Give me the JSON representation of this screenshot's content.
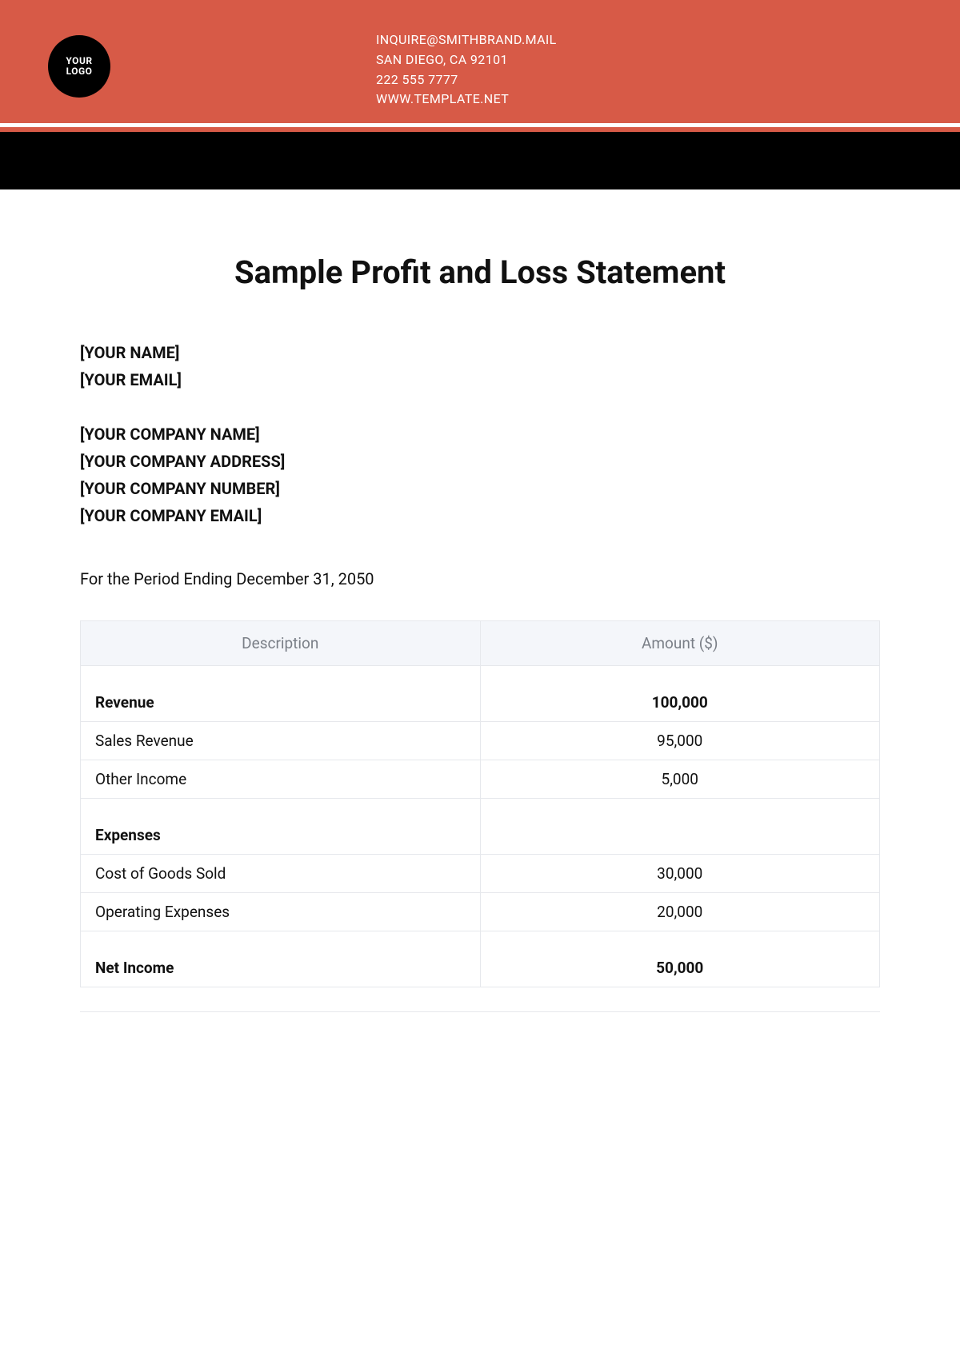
{
  "header": {
    "band_color": "#d75a47",
    "black_band_color": "#000000",
    "logo": {
      "line1": "YOUR",
      "line2": "LOGO"
    },
    "contact": {
      "email": "INQUIRE@SMITHBRAND.MAIL",
      "address": "SAN DIEGO, CA 92101",
      "phone": "222 555 7777",
      "website": "WWW.TEMPLATE.NET"
    }
  },
  "title": "Sample Profit and Loss Statement",
  "personal": {
    "name": "[YOUR NAME]",
    "email": "[YOUR EMAIL]"
  },
  "company": {
    "name": "[YOUR COMPANY NAME]",
    "address": "[YOUR COMPANY ADDRESS]",
    "number": "[YOUR COMPANY NUMBER]",
    "email": "[YOUR COMPANY EMAIL]"
  },
  "period_text": "For the Period Ending December 31, 2050",
  "table": {
    "columns": [
      "Description",
      "Amount ($)"
    ],
    "header_bg": "#f4f6fa",
    "header_fg": "#7a7f87",
    "border_color": "#e6e8ec",
    "rows": [
      {
        "type": "section",
        "label": "Revenue",
        "amount": "100,000"
      },
      {
        "type": "line",
        "label": "Sales Revenue",
        "amount": "95,000"
      },
      {
        "type": "line",
        "label": "Other Income",
        "amount": "5,000"
      },
      {
        "type": "section",
        "label": "Expenses",
        "amount": ""
      },
      {
        "type": "line",
        "label": "Cost of Goods Sold",
        "amount": "30,000"
      },
      {
        "type": "line",
        "label": "Operating Expenses",
        "amount": "20,000"
      },
      {
        "type": "section",
        "label": "Net Income",
        "amount": "50,000"
      }
    ]
  }
}
